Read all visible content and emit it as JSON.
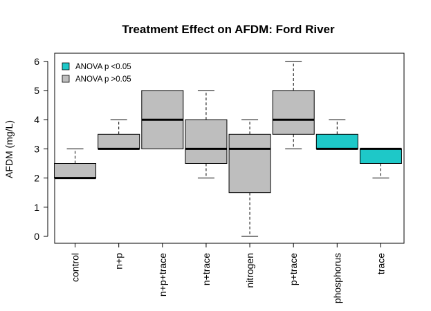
{
  "chart_data": {
    "type": "boxplot",
    "title": "Treatment Effect on AFDM: Ford River",
    "xlabel": "",
    "ylabel": "AFDM (mg/L)",
    "ylim": [
      0,
      6
    ],
    "yticks": [
      0,
      1,
      2,
      3,
      4,
      5,
      6
    ],
    "grid": false,
    "legend_position": "top-left",
    "legend": [
      {
        "label": "ANOVA p <0.05",
        "color": "#1ec8c8"
      },
      {
        "label": "ANOVA p >0.05",
        "color": "#bebebe"
      }
    ],
    "categories": [
      "control",
      "n+p",
      "n+p+trace",
      "n+trace",
      "nitrogen",
      "p+trace",
      "phosphorus",
      "trace"
    ],
    "boxes": [
      {
        "category": "control",
        "min": 2,
        "q1": 2,
        "median": 2,
        "q3": 2.5,
        "max": 3,
        "significant": false
      },
      {
        "category": "n+p",
        "min": 3,
        "q1": 3,
        "median": 3,
        "q3": 3.5,
        "max": 4,
        "significant": false
      },
      {
        "category": "n+p+trace",
        "min": 3,
        "q1": 3,
        "median": 4,
        "q3": 5,
        "max": 5,
        "significant": false
      },
      {
        "category": "n+trace",
        "min": 2,
        "q1": 2.5,
        "median": 3,
        "q3": 4,
        "max": 5,
        "significant": false
      },
      {
        "category": "nitrogen",
        "min": 0,
        "q1": 1.5,
        "median": 3,
        "q3": 3.5,
        "max": 4,
        "significant": false
      },
      {
        "category": "p+trace",
        "min": 3,
        "q1": 3.5,
        "median": 4,
        "q3": 5,
        "max": 6,
        "significant": false
      },
      {
        "category": "phosphorus",
        "min": 3,
        "q1": 3,
        "median": 3,
        "q3": 3.5,
        "max": 4,
        "significant": true
      },
      {
        "category": "trace",
        "min": 2,
        "q1": 2.5,
        "median": 3,
        "q3": 3,
        "max": 3,
        "significant": true
      }
    ]
  }
}
